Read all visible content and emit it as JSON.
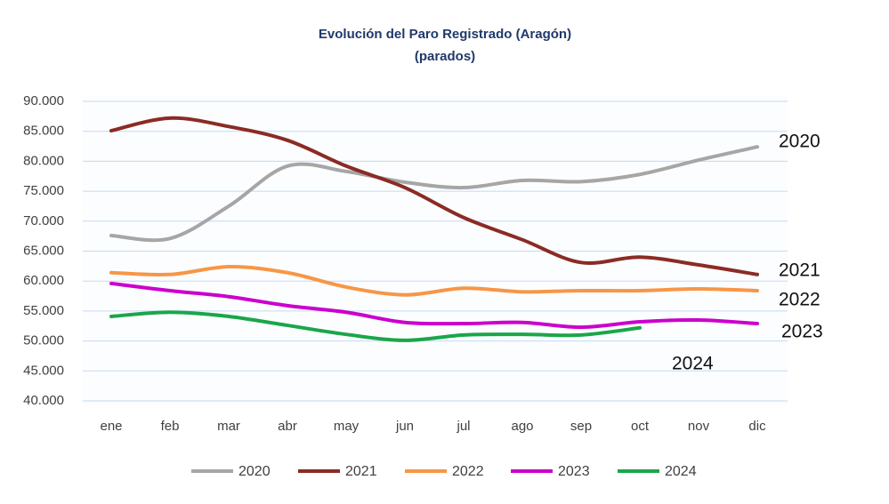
{
  "chart_data": {
    "type": "line",
    "title": "Evolución del Paro Registrado (Aragón)",
    "subtitle": "(parados)",
    "categories": [
      "ene",
      "feb",
      "mar",
      "abr",
      "may",
      "jun",
      "jul",
      "ago",
      "sep",
      "oct",
      "nov",
      "dic"
    ],
    "ylim": [
      40000,
      90000
    ],
    "yticks": [
      {
        "value": 40000,
        "label": "40.000"
      },
      {
        "value": 45000,
        "label": "45.000"
      },
      {
        "value": 50000,
        "label": "50.000"
      },
      {
        "value": 55000,
        "label": "55.000"
      },
      {
        "value": 60000,
        "label": "60.000"
      },
      {
        "value": 65000,
        "label": "65.000"
      },
      {
        "value": 70000,
        "label": "70.000"
      },
      {
        "value": 75000,
        "label": "75.000"
      },
      {
        "value": 80000,
        "label": "80.000"
      },
      {
        "value": 85000,
        "label": "85.000"
      },
      {
        "value": 90000,
        "label": "90.000"
      }
    ],
    "grid": true,
    "legend": "bottom",
    "series": [
      {
        "name": "2020",
        "color": "#a6a6a6",
        "values": [
          67600,
          67100,
          72500,
          79200,
          78300,
          76500,
          75600,
          76800,
          76600,
          77800,
          80200,
          82400
        ]
      },
      {
        "name": "2021",
        "color": "#8b2b24",
        "values": [
          85100,
          87200,
          85800,
          83500,
          79200,
          75600,
          70600,
          66900,
          63100,
          64000,
          62700,
          61100
        ]
      },
      {
        "name": "2022",
        "color": "#f79646",
        "values": [
          61400,
          61100,
          62400,
          61400,
          59000,
          57700,
          58800,
          58200,
          58400,
          58400,
          58700,
          58400
        ]
      },
      {
        "name": "2023",
        "color": "#cc00cc",
        "values": [
          59600,
          58400,
          57400,
          55900,
          54800,
          53100,
          52900,
          53100,
          52300,
          53200,
          53500,
          52900
        ]
      },
      {
        "name": "2024",
        "color": "#1aa64a",
        "values": [
          54100,
          54800,
          54100,
          52600,
          51100,
          50100,
          51000,
          51100,
          51000,
          52200,
          null,
          null
        ]
      }
    ]
  }
}
